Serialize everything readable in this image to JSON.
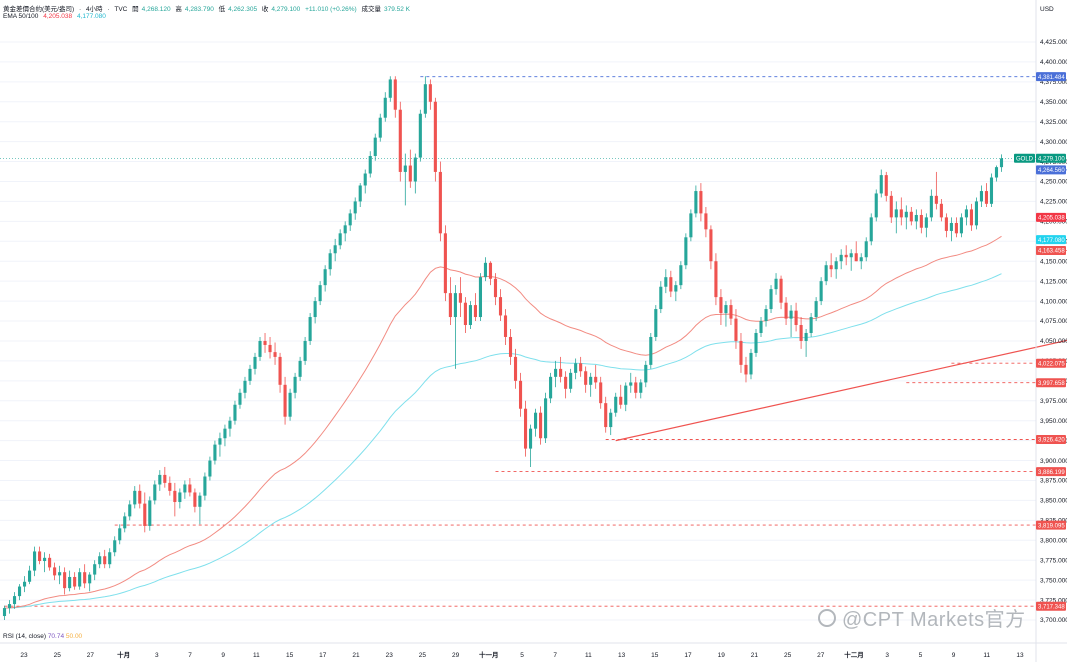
{
  "header": {
    "symbol_title": "黄金差價合約(美元/盎司)",
    "interval": "4小時",
    "source": "TVC",
    "open_label": "開",
    "open_value": "4,268.120",
    "high_label": "高",
    "high_value": "4,283.790",
    "low_label": "低",
    "low_value": "4,262.305",
    "close_label": "收",
    "close_value": "4,279.100",
    "change": "+11.010 (+0.26%)",
    "volume_label": "成交量",
    "volume_value": "379.52 K",
    "ema_label": "EMA 50/100",
    "ema50_value": "4,205.038",
    "ema100_value": "4,177.080"
  },
  "rsi": {
    "label": "RSI (14, close)",
    "value1": "70.74",
    "value2": "50.00"
  },
  "currency": "USD",
  "watermark": "@CPT Markets官方",
  "colors": {
    "up": "#26a69a",
    "down": "#ef5350",
    "ema50": "#f28b82",
    "ema100": "#7fe0ec",
    "trendline": "#ef5350",
    "support_dash": "#ef5350",
    "resistance_dash": "#4a6fd8",
    "gold_badge": "#089981",
    "ema50_badge": "#f23645",
    "ema100_badge": "#22d3ee"
  },
  "chart_data": {
    "type": "candlestick",
    "instrument": "GOLD",
    "ylim": [
      3690,
      4440
    ],
    "y_ticks": [
      "4,425.000",
      "4,400.000",
      "4,375.000",
      "4,350.000",
      "4,325.000",
      "4,300.000",
      "4,275.000",
      "4,250.000",
      "4,225.000",
      "4,200.000",
      "4,175.000",
      "4,150.000",
      "4,125.000",
      "4,100.000",
      "4,075.000",
      "4,050.000",
      "4,025.000",
      "4,000.000",
      "3,975.000",
      "3,950.000",
      "3,925.000",
      "3,900.000",
      "3,875.000",
      "3,850.000",
      "3,825.000",
      "3,800.000",
      "3,775.000",
      "3,750.000",
      "3,725.000",
      "3,700.000"
    ],
    "x_ticks": [
      "23",
      "25",
      "27",
      "十月",
      "3",
      "7",
      "9",
      "11",
      "15",
      "17",
      "21",
      "23",
      "25",
      "29",
      "十一月",
      "5",
      "7",
      "11",
      "13",
      "15",
      "17",
      "19",
      "21",
      "25",
      "27",
      "十二月",
      "3",
      "5",
      "9",
      "11",
      "13"
    ],
    "last_price": "4,279.100",
    "price_labels": [
      {
        "text": "4,381.484",
        "value": 4381.484,
        "kind": "resistance"
      },
      {
        "text": "4,279.100",
        "value": 4279.1,
        "kind": "last",
        "prefix": "GOLD"
      },
      {
        "text": "4,264.560",
        "value": 4264.56,
        "kind": "resistance"
      },
      {
        "text": "4,205.038",
        "value": 4205.038,
        "kind": "ema50"
      },
      {
        "text": "4,177.080",
        "value": 4177.08,
        "kind": "ema100"
      },
      {
        "text": "4,163.458",
        "value": 4163.458,
        "kind": "support"
      },
      {
        "text": "4,022.075",
        "value": 4022.075,
        "kind": "support"
      },
      {
        "text": "3,997.658",
        "value": 3997.658,
        "kind": "support"
      },
      {
        "text": "3,926.420",
        "value": 3926.42,
        "kind": "support"
      },
      {
        "text": "3,886.199",
        "value": 3886.199,
        "kind": "support"
      },
      {
        "text": "3,819.095",
        "value": 3819.095,
        "kind": "support"
      },
      {
        "text": "3,717.348",
        "value": 3717.348,
        "kind": "support"
      }
    ],
    "candles": [
      [
        3705,
        3718,
        3700,
        3715
      ],
      [
        3715,
        3725,
        3708,
        3720
      ],
      [
        3720,
        3735,
        3714,
        3730
      ],
      [
        3730,
        3745,
        3725,
        3742
      ],
      [
        3742,
        3755,
        3735,
        3748
      ],
      [
        3748,
        3768,
        3745,
        3762
      ],
      [
        3762,
        3792,
        3755,
        3786
      ],
      [
        3786,
        3792,
        3770,
        3774
      ],
      [
        3774,
        3785,
        3760,
        3778
      ],
      [
        3778,
        3783,
        3762,
        3766
      ],
      [
        3766,
        3772,
        3750,
        3756
      ],
      [
        3756,
        3768,
        3745,
        3760
      ],
      [
        3760,
        3766,
        3732,
        3740
      ],
      [
        3740,
        3762,
        3736,
        3754
      ],
      [
        3754,
        3760,
        3738,
        3742
      ],
      [
        3742,
        3765,
        3738,
        3760
      ],
      [
        3760,
        3770,
        3740,
        3746
      ],
      [
        3746,
        3760,
        3736,
        3757
      ],
      [
        3757,
        3775,
        3750,
        3770
      ],
      [
        3770,
        3785,
        3765,
        3780
      ],
      [
        3780,
        3788,
        3765,
        3770
      ],
      [
        3770,
        3790,
        3765,
        3785
      ],
      [
        3785,
        3805,
        3780,
        3800
      ],
      [
        3800,
        3820,
        3795,
        3815
      ],
      [
        3815,
        3835,
        3810,
        3830
      ],
      [
        3830,
        3850,
        3825,
        3845
      ],
      [
        3845,
        3868,
        3840,
        3862
      ],
      [
        3862,
        3870,
        3840,
        3846
      ],
      [
        3846,
        3860,
        3810,
        3818
      ],
      [
        3818,
        3855,
        3812,
        3850
      ],
      [
        3850,
        3875,
        3845,
        3870
      ],
      [
        3870,
        3888,
        3862,
        3882
      ],
      [
        3882,
        3892,
        3866,
        3872
      ],
      [
        3872,
        3880,
        3856,
        3862
      ],
      [
        3862,
        3872,
        3830,
        3848
      ],
      [
        3848,
        3865,
        3840,
        3860
      ],
      [
        3860,
        3875,
        3852,
        3870
      ],
      [
        3870,
        3878,
        3855,
        3860
      ],
      [
        3860,
        3865,
        3835,
        3842
      ],
      [
        3842,
        3860,
        3820,
        3856
      ],
      [
        3856,
        3885,
        3850,
        3880
      ],
      [
        3880,
        3905,
        3875,
        3900
      ],
      [
        3900,
        3925,
        3895,
        3920
      ],
      [
        3920,
        3935,
        3905,
        3928
      ],
      [
        3928,
        3945,
        3918,
        3940
      ],
      [
        3940,
        3955,
        3930,
        3950
      ],
      [
        3950,
        3975,
        3945,
        3970
      ],
      [
        3970,
        3990,
        3965,
        3985
      ],
      [
        3985,
        4005,
        3978,
        4000
      ],
      [
        4000,
        4020,
        3995,
        4015
      ],
      [
        4015,
        4035,
        4008,
        4030
      ],
      [
        4030,
        4055,
        4025,
        4050
      ],
      [
        4050,
        4060,
        4035,
        4045
      ],
      [
        4045,
        4055,
        4028,
        4036
      ],
      [
        4036,
        4048,
        4020,
        4030
      ],
      [
        4030,
        4035,
        3985,
        3995
      ],
      [
        3995,
        4005,
        3945,
        3955
      ],
      [
        3955,
        3990,
        3950,
        3985
      ],
      [
        3985,
        4010,
        3978,
        4005
      ],
      [
        4005,
        4030,
        4000,
        4025
      ],
      [
        4025,
        4055,
        4020,
        4050
      ],
      [
        4050,
        4085,
        4045,
        4080
      ],
      [
        4080,
        4105,
        4072,
        4100
      ],
      [
        4100,
        4125,
        4095,
        4120
      ],
      [
        4120,
        4145,
        4112,
        4140
      ],
      [
        4140,
        4165,
        4132,
        4160
      ],
      [
        4160,
        4178,
        4150,
        4170
      ],
      [
        4170,
        4190,
        4165,
        4185
      ],
      [
        4185,
        4200,
        4175,
        4195
      ],
      [
        4195,
        4215,
        4188,
        4210
      ],
      [
        4210,
        4230,
        4202,
        4225
      ],
      [
        4225,
        4248,
        4218,
        4245
      ],
      [
        4245,
        4265,
        4235,
        4260
      ],
      [
        4260,
        4288,
        4255,
        4282
      ],
      [
        4282,
        4310,
        4276,
        4305
      ],
      [
        4305,
        4335,
        4300,
        4330
      ],
      [
        4330,
        4362,
        4325,
        4355
      ],
      [
        4355,
        4382,
        4350,
        4378
      ],
      [
        4378,
        4382,
        4330,
        4340
      ],
      [
        4340,
        4350,
        4250,
        4262
      ],
      [
        4262,
        4285,
        4220,
        4270
      ],
      [
        4270,
        4290,
        4242,
        4250
      ],
      [
        4250,
        4285,
        4235,
        4280
      ],
      [
        4280,
        4340,
        4275,
        4335
      ],
      [
        4335,
        4382,
        4330,
        4372
      ],
      [
        4372,
        4378,
        4340,
        4350
      ],
      [
        4350,
        4355,
        4250,
        4262
      ],
      [
        4262,
        4275,
        4175,
        4185
      ],
      [
        4185,
        4195,
        4100,
        4110
      ],
      [
        4110,
        4130,
        4070,
        4080
      ],
      [
        4080,
        4120,
        4015,
        4110
      ],
      [
        4110,
        4130,
        4080,
        4098
      ],
      [
        4098,
        4105,
        4060,
        4070
      ],
      [
        4070,
        4100,
        4065,
        4095
      ],
      [
        4095,
        4110,
        4075,
        4080
      ],
      [
        4080,
        4135,
        4075,
        4130
      ],
      [
        4130,
        4155,
        4125,
        4148
      ],
      [
        4148,
        4150,
        4120,
        4128
      ],
      [
        4128,
        4135,
        4095,
        4105
      ],
      [
        4105,
        4115,
        4075,
        4082
      ],
      [
        4082,
        4090,
        4045,
        4055
      ],
      [
        4055,
        4065,
        4020,
        4030
      ],
      [
        4030,
        4040,
        3990,
        4000
      ],
      [
        4000,
        4010,
        3955,
        3965
      ],
      [
        3965,
        3975,
        3905,
        3915
      ],
      [
        3915,
        3945,
        3892,
        3940
      ],
      [
        3940,
        3965,
        3930,
        3960
      ],
      [
        3960,
        3968,
        3920,
        3928
      ],
      [
        3928,
        3985,
        3922,
        3978
      ],
      [
        3978,
        4010,
        3972,
        4005
      ],
      [
        4005,
        4025,
        3992,
        4015
      ],
      [
        4015,
        4030,
        3998,
        4005
      ],
      [
        4005,
        4012,
        3978,
        3990
      ],
      [
        3990,
        4015,
        3985,
        4010
      ],
      [
        4010,
        4028,
        4002,
        4022
      ],
      [
        4022,
        4030,
        4005,
        4012
      ],
      [
        4012,
        4018,
        3985,
        3995
      ],
      [
        3995,
        4010,
        3980,
        4005
      ],
      [
        4005,
        4020,
        3990,
        3998
      ],
      [
        3998,
        4005,
        3965,
        3972
      ],
      [
        3972,
        3980,
        3935,
        3942
      ],
      [
        3942,
        3965,
        3932,
        3960
      ],
      [
        3960,
        3985,
        3955,
        3980
      ],
      [
        3980,
        3995,
        3965,
        3970
      ],
      [
        3970,
        3998,
        3962,
        3994
      ],
      [
        3994,
        4010,
        3985,
        3998
      ],
      [
        3998,
        4005,
        3978,
        3985
      ],
      [
        3985,
        4002,
        3978,
        3998
      ],
      [
        3998,
        4025,
        3992,
        4020
      ],
      [
        4020,
        4060,
        4015,
        4055
      ],
      [
        4055,
        4095,
        4050,
        4090
      ],
      [
        4090,
        4125,
        4085,
        4118
      ],
      [
        4118,
        4140,
        4110,
        4130
      ],
      [
        4130,
        4138,
        4105,
        4112
      ],
      [
        4112,
        4125,
        4100,
        4120
      ],
      [
        4120,
        4150,
        4115,
        4145
      ],
      [
        4145,
        4185,
        4140,
        4180
      ],
      [
        4180,
        4215,
        4175,
        4210
      ],
      [
        4210,
        4245,
        4205,
        4238
      ],
      [
        4238,
        4248,
        4200,
        4210
      ],
      [
        4210,
        4218,
        4180,
        4190
      ],
      [
        4190,
        4195,
        4140,
        4150
      ],
      [
        4150,
        4160,
        4095,
        4105
      ],
      [
        4105,
        4115,
        4070,
        4085
      ],
      [
        4085,
        4100,
        4068,
        4095
      ],
      [
        4095,
        4102,
        4070,
        4078
      ],
      [
        4078,
        4090,
        4040,
        4050
      ],
      [
        4050,
        4060,
        4010,
        4020
      ],
      [
        4020,
        4030,
        3998,
        4008
      ],
      [
        4008,
        4040,
        4002,
        4035
      ],
      [
        4035,
        4065,
        4030,
        4060
      ],
      [
        4060,
        4080,
        4055,
        4075
      ],
      [
        4075,
        4095,
        4068,
        4090
      ],
      [
        4090,
        4120,
        4085,
        4115
      ],
      [
        4115,
        4135,
        4108,
        4128
      ],
      [
        4128,
        4132,
        4090,
        4098
      ],
      [
        4098,
        4105,
        4070,
        4078
      ],
      [
        4078,
        4095,
        4055,
        4088
      ],
      [
        4088,
        4098,
        4062,
        4070
      ],
      [
        4070,
        4080,
        4040,
        4050
      ],
      [
        4050,
        4065,
        4030,
        4060
      ],
      [
        4060,
        4085,
        4055,
        4080
      ],
      [
        4080,
        4105,
        4075,
        4100
      ],
      [
        4100,
        4130,
        4095,
        4125
      ],
      [
        4125,
        4150,
        4120,
        4145
      ],
      [
        4145,
        4160,
        4130,
        4140
      ],
      [
        4140,
        4155,
        4128,
        4150
      ],
      [
        4150,
        4165,
        4140,
        4158
      ],
      [
        4158,
        4170,
        4145,
        4155
      ],
      [
        4155,
        4165,
        4138,
        4160
      ],
      [
        4160,
        4175,
        4150,
        4150
      ],
      [
        4150,
        4160,
        4140,
        4155
      ],
      [
        4155,
        4180,
        4150,
        4175
      ],
      [
        4175,
        4210,
        4170,
        4205
      ],
      [
        4205,
        4240,
        4200,
        4235
      ],
      [
        4235,
        4265,
        4230,
        4258
      ],
      [
        4258,
        4262,
        4225,
        4232
      ],
      [
        4232,
        4238,
        4198,
        4205
      ],
      [
        4205,
        4225,
        4185,
        4215
      ],
      [
        4215,
        4230,
        4195,
        4205
      ],
      [
        4205,
        4220,
        4190,
        4212
      ],
      [
        4212,
        4218,
        4195,
        4200
      ],
      [
        4200,
        4215,
        4190,
        4208
      ],
      [
        4208,
        4215,
        4185,
        4192
      ],
      [
        4192,
        4210,
        4180,
        4205
      ],
      [
        4205,
        4240,
        4200,
        4232
      ],
      [
        4232,
        4262,
        4215,
        4222
      ],
      [
        4222,
        4228,
        4200,
        4205
      ],
      [
        4205,
        4210,
        4180,
        4188
      ],
      [
        4188,
        4205,
        4175,
        4198
      ],
      [
        4198,
        4205,
        4180,
        4185
      ],
      [
        4185,
        4210,
        4180,
        4205
      ],
      [
        4205,
        4220,
        4195,
        4215
      ],
      [
        4215,
        4222,
        4188,
        4195
      ],
      [
        4195,
        4230,
        4190,
        4225
      ],
      [
        4225,
        4245,
        4218,
        4238
      ],
      [
        4238,
        4248,
        4218,
        4222
      ],
      [
        4222,
        4260,
        4218,
        4255
      ],
      [
        4255,
        4270,
        4250,
        4268
      ],
      [
        4268,
        4284,
        4262,
        4279
      ]
    ],
    "trendline": [
      {
        "index": 122,
        "value": 3925
      },
      {
        "index": 256,
        "value": 4112
      }
    ],
    "dashed_levels": [
      {
        "value": 4381.484,
        "from_index": 83,
        "kind": "resistance"
      },
      {
        "value": 4264.56,
        "from_index": 230,
        "kind": "resistance"
      },
      {
        "value": 4163.458,
        "from_index": 218,
        "kind": "support"
      },
      {
        "value": 4022.075,
        "from_index": 189,
        "kind": "support"
      },
      {
        "value": 3997.658,
        "from_index": 180,
        "kind": "support"
      },
      {
        "value": 3926.42,
        "from_index": 120,
        "kind": "support"
      },
      {
        "value": 3886.199,
        "from_index": 98,
        "kind": "support"
      },
      {
        "value": 3819.095,
        "from_index": 22,
        "kind": "support"
      },
      {
        "value": 3717.348,
        "from_index": 0,
        "kind": "support"
      }
    ]
  }
}
